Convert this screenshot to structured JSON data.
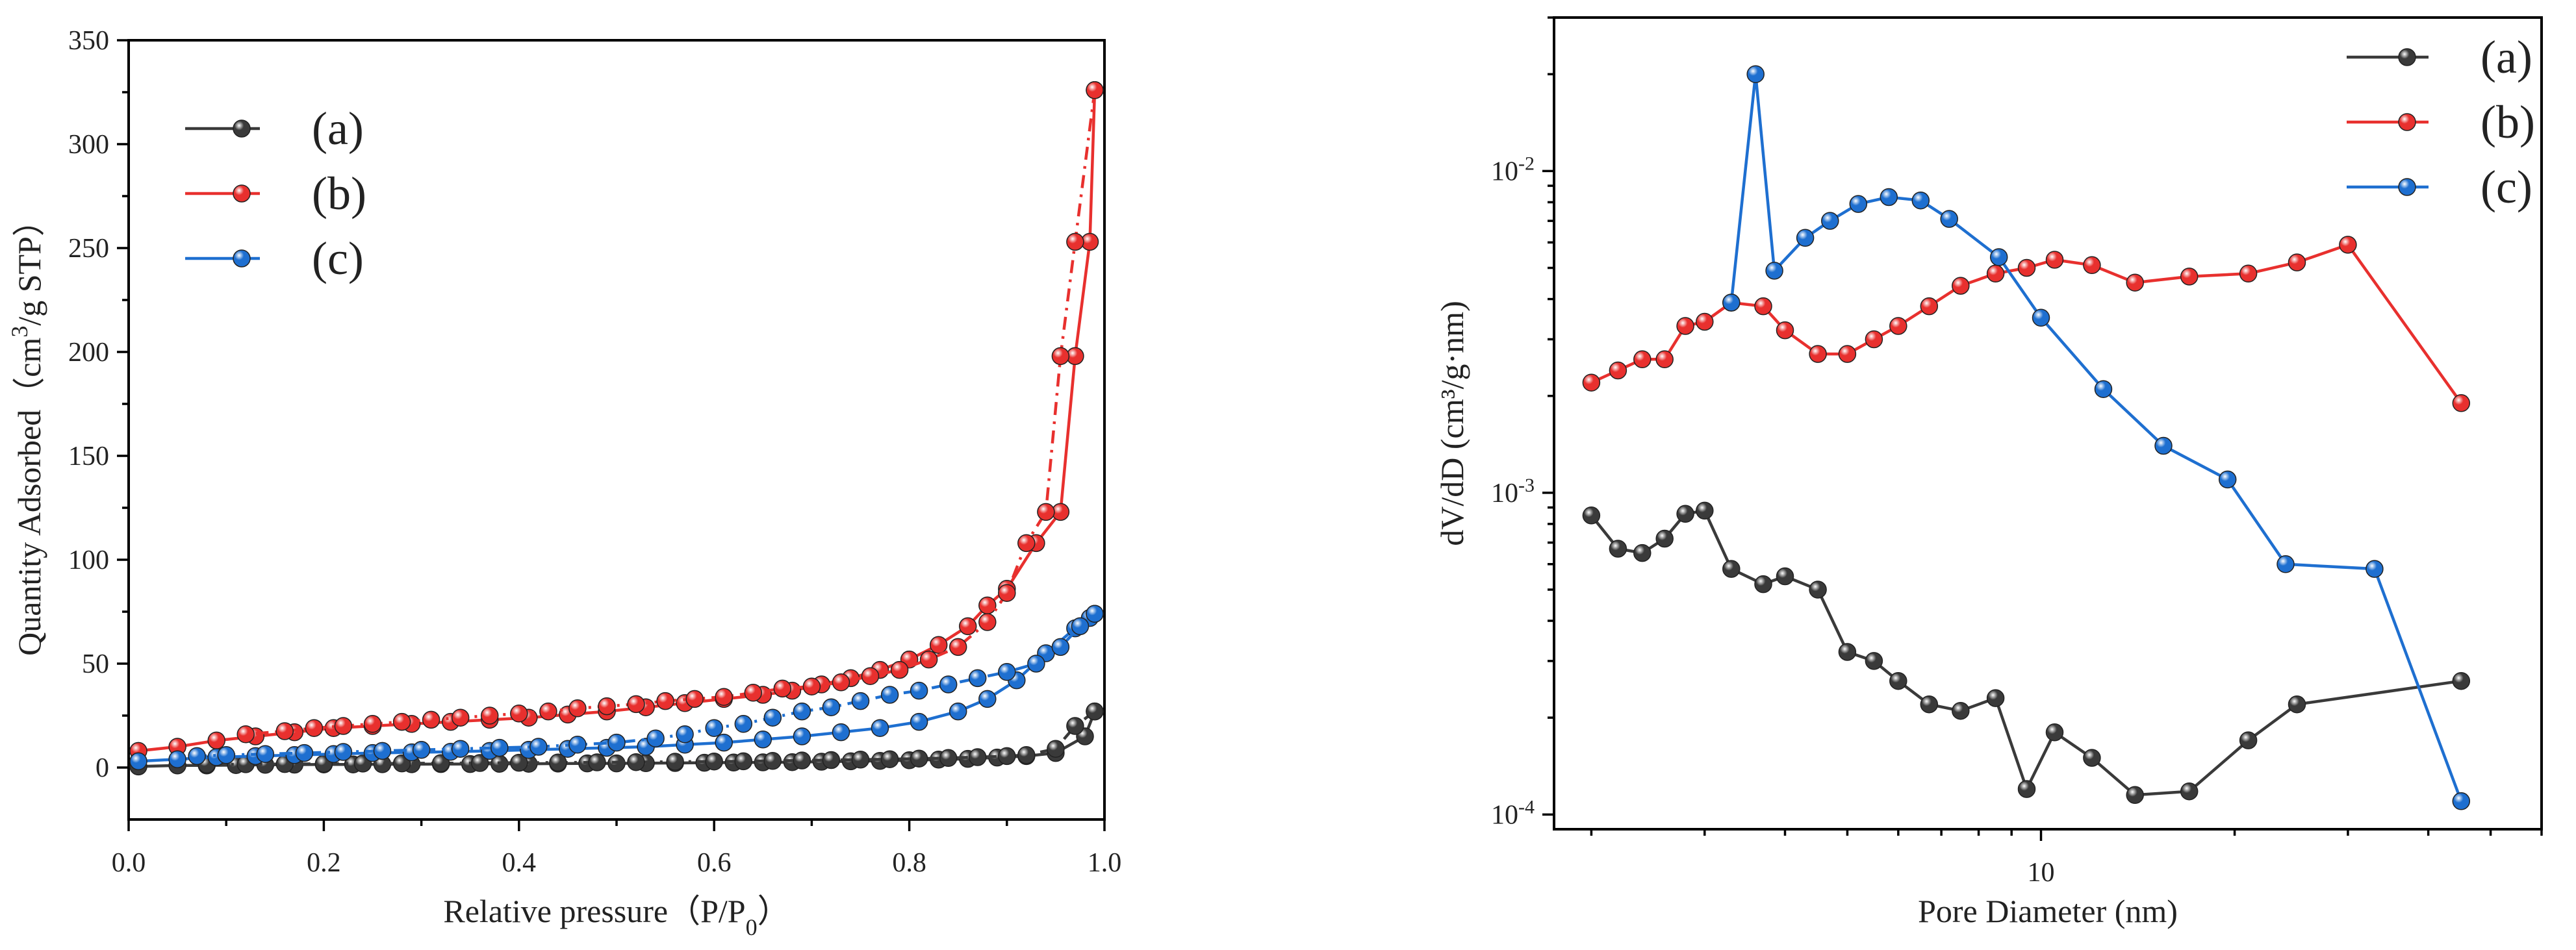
{
  "chart_data": [
    {
      "id": "left",
      "type": "line",
      "title": "",
      "xlabel": "Relative pressure（P/P",
      "xlabel_sub": "0",
      "xlabel_end": "）",
      "ylabel": "Quantity Adsorbed（cm",
      "ylabel_sup": "3",
      "ylabel_end": "/g STP）",
      "xlim": [
        0,
        1
      ],
      "ylim": [
        -25,
        350
      ],
      "xticks": [
        0,
        0.2,
        0.4,
        0.6,
        0.8,
        1.0
      ],
      "xtick_labels": [
        "0.0",
        "0.2",
        "0.4",
        "0.6",
        "0.8",
        "1.0"
      ],
      "yticks": [
        0,
        50,
        100,
        150,
        200,
        250,
        300,
        350
      ],
      "ytick_labels": [
        "0",
        "50",
        "100",
        "150",
        "200",
        "250",
        "300",
        "350"
      ],
      "legend_position": "top-left",
      "series": [
        {
          "name": "(a)",
          "label": "(a)",
          "color": "#3a3a3a",
          "adsorption": {
            "x": [
              0.01,
              0.05,
              0.08,
              0.11,
              0.14,
              0.17,
              0.2,
              0.23,
              0.26,
              0.29,
              0.32,
              0.35,
              0.38,
              0.41,
              0.44,
              0.47,
              0.5,
              0.53,
              0.56,
              0.59,
              0.62,
              0.65,
              0.68,
              0.71,
              0.74,
              0.77,
              0.8,
              0.83,
              0.86,
              0.89,
              0.92,
              0.95,
              0.98,
              0.99
            ],
            "y": [
              0.5,
              1,
              1,
              1.2,
              1.3,
              1.4,
              1.5,
              1.5,
              1.6,
              1.6,
              1.7,
              1.7,
              1.8,
              1.8,
              1.9,
              2,
              2,
              2.1,
              2.2,
              2.3,
              2.4,
              2.5,
              2.6,
              2.8,
              3,
              3.2,
              3.5,
              3.8,
              4.2,
              4.8,
              5.5,
              7,
              15,
              27
            ]
          },
          "desorption": {
            "x": [
              0.99,
              0.97,
              0.95,
              0.92,
              0.9,
              0.87,
              0.84,
              0.81,
              0.78,
              0.75,
              0.72,
              0.69,
              0.66,
              0.63,
              0.6,
              0.56,
              0.52,
              0.48,
              0.44,
              0.4,
              0.36,
              0.32,
              0.28,
              0.24,
              0.2,
              0.16,
              0.12,
              0.08
            ],
            "y": [
              27,
              20,
              9,
              6,
              5.5,
              5,
              4.6,
              4.3,
              4,
              3.8,
              3.6,
              3.4,
              3.2,
              3,
              2.9,
              2.8,
              2.6,
              2.5,
              2.4,
              2.3,
              2.2,
              2.1,
              2,
              1.9,
              1.8,
              1.7,
              1.6,
              1.5
            ]
          }
        },
        {
          "name": "(b)",
          "label": "(b)",
          "color": "#e8302e",
          "adsorption": {
            "x": [
              0.01,
              0.05,
              0.09,
              0.13,
              0.17,
              0.21,
              0.25,
              0.29,
              0.33,
              0.37,
              0.41,
              0.45,
              0.49,
              0.53,
              0.57,
              0.61,
              0.65,
              0.68,
              0.71,
              0.74,
              0.77,
              0.8,
              0.83,
              0.86,
              0.88,
              0.9,
              0.93,
              0.955,
              0.97,
              0.985,
              0.99
            ],
            "y": [
              8,
              10,
              13,
              15,
              17,
              19,
              20,
              21,
              22,
              23,
              24,
              25.5,
              27,
              29,
              31,
              33,
              35,
              37,
              40,
              43,
              47,
              52,
              59,
              68,
              78,
              86,
              108,
              123,
              198,
              253,
              326
            ]
          },
          "desorption": {
            "x": [
              0.99,
              0.97,
              0.955,
              0.94,
              0.92,
              0.9,
              0.88,
              0.85,
              0.82,
              0.79,
              0.76,
              0.73,
              0.7,
              0.67,
              0.64,
              0.61,
              0.58,
              0.55,
              0.52,
              0.49,
              0.46,
              0.43,
              0.4,
              0.37,
              0.34,
              0.31,
              0.28,
              0.25,
              0.22,
              0.19,
              0.16,
              0.12
            ],
            "y": [
              326,
              253,
              198,
              123,
              108,
              84,
              70,
              58,
              52,
              47,
              44,
              41,
              39,
              38,
              36,
              34,
              33,
              32,
              30.5,
              29.5,
              28.5,
              27,
              26,
              25,
              24,
              23,
              22,
              21,
              20,
              19,
              17.5,
              16
            ]
          }
        },
        {
          "name": "(c)",
          "label": "(c)",
          "color": "#1e6fd0",
          "adsorption": {
            "x": [
              0.01,
              0.05,
              0.09,
              0.13,
              0.17,
              0.21,
              0.25,
              0.29,
              0.33,
              0.37,
              0.41,
              0.45,
              0.49,
              0.53,
              0.57,
              0.61,
              0.65,
              0.69,
              0.73,
              0.77,
              0.81,
              0.85,
              0.88,
              0.91,
              0.94,
              0.97,
              0.985,
              0.99
            ],
            "y": [
              3,
              4,
              5,
              5.5,
              6,
              6.5,
              7,
              7.3,
              7.6,
              8,
              8.5,
              9,
              9.5,
              10,
              11,
              12,
              13.5,
              15,
              17,
              19,
              22,
              27,
              33,
              42,
              55,
              67,
              72,
              74
            ]
          },
          "desorption": {
            "x": [
              0.99,
              0.975,
              0.955,
              0.93,
              0.9,
              0.87,
              0.84,
              0.81,
              0.78,
              0.75,
              0.72,
              0.69,
              0.66,
              0.63,
              0.6,
              0.57,
              0.54,
              0.5,
              0.46,
              0.42,
              0.38,
              0.34,
              0.3,
              0.26,
              0.22,
              0.18,
              0.14,
              0.1,
              0.07
            ],
            "y": [
              74,
              68,
              58,
              50,
              46,
              43,
              40,
              37,
              35,
              32,
              29,
              27,
              24,
              21,
              19,
              16,
              14,
              12,
              11,
              10,
              9.5,
              9,
              8.5,
              8,
              7.5,
              7,
              6.5,
              6,
              5.5
            ]
          }
        }
      ]
    },
    {
      "id": "right",
      "type": "line",
      "title": "",
      "xlabel": "Pore Diameter (nm)",
      "ylabel": "dV/dD (cm³/g·nm)",
      "xscale": "log",
      "yscale": "log",
      "xlim": [
        1.75,
        60
      ],
      "ylim": [
        9e-05,
        0.03
      ],
      "xtick_labels_major": [
        "10"
      ],
      "ytick_labels_major": [
        "10",
        "10",
        "10"
      ],
      "ytick_exponents": [
        "-4",
        "-3",
        "-2"
      ],
      "legend_position": "top-right",
      "series": [
        {
          "name": "(a)",
          "label": "(a)",
          "color": "#3a3a3a",
          "x": [
            2.0,
            2.2,
            2.4,
            2.6,
            2.8,
            3.0,
            3.3,
            3.7,
            4.0,
            4.5,
            5.0,
            5.5,
            6.0,
            6.7,
            7.5,
            8.5,
            9.5,
            10.5,
            12.0,
            14.0,
            17.0,
            21.0,
            25.0,
            45.0
          ],
          "y": [
            0.00085,
            0.00067,
            0.00065,
            0.00072,
            0.00086,
            0.00088,
            0.00058,
            0.00052,
            0.00055,
            0.0005,
            0.00032,
            0.0003,
            0.00026,
            0.00022,
            0.00021,
            0.00023,
            0.00012,
            0.00018,
            0.00015,
            0.000115,
            0.000118,
            0.00017,
            0.00022,
            0.00026
          ]
        },
        {
          "name": "(b)",
          "label": "(b)",
          "color": "#e8302e",
          "x": [
            2.0,
            2.2,
            2.4,
            2.6,
            2.8,
            3.0,
            3.3,
            3.7,
            4.0,
            4.5,
            5.0,
            5.5,
            6.0,
            6.7,
            7.5,
            8.5,
            9.5,
            10.5,
            12.0,
            14.0,
            17.0,
            21.0,
            25.0,
            30.0,
            45.0
          ],
          "y": [
            0.0022,
            0.0024,
            0.0026,
            0.0026,
            0.0033,
            0.0034,
            0.0039,
            0.0038,
            0.0032,
            0.0027,
            0.0027,
            0.003,
            0.0033,
            0.0038,
            0.0044,
            0.0048,
            0.005,
            0.0053,
            0.0051,
            0.0045,
            0.0047,
            0.0048,
            0.0052,
            0.0059,
            0.0019
          ]
        },
        {
          "name": "(c)",
          "label": "(c)",
          "color": "#1e6fd0",
          "x": [
            3.3,
            3.6,
            3.85,
            4.3,
            4.7,
            5.2,
            5.8,
            6.5,
            7.2,
            8.6,
            10.0,
            12.5,
            15.5,
            19.5,
            24.0,
            33.0,
            45.0
          ],
          "y": [
            0.0039,
            0.02,
            0.0049,
            0.0062,
            0.007,
            0.0079,
            0.0083,
            0.0081,
            0.0071,
            0.0054,
            0.0035,
            0.0021,
            0.0014,
            0.0011,
            0.0006,
            0.00058,
            0.00011
          ]
        }
      ]
    }
  ]
}
